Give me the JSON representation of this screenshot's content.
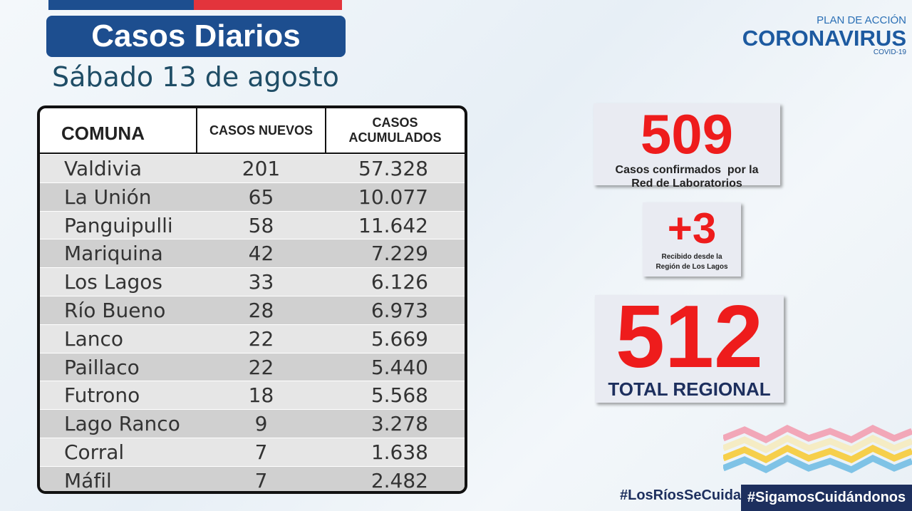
{
  "header": {
    "title": "Casos Diarios",
    "subtitle": "Sábado 13 de agosto"
  },
  "logo": {
    "line1": "PLAN DE ACCIÓN",
    "line2": "CORONAVIRUS",
    "line3": "COVID-19"
  },
  "table": {
    "columns": [
      "COMUNA",
      "CASOS NUEVOS",
      [
        "CASOS",
        "ACUMULADOS"
      ]
    ],
    "rows": [
      [
        "Valdivia",
        "201",
        "57.328"
      ],
      [
        "La Unión",
        "65",
        "10.077"
      ],
      [
        "Panguipulli",
        "58",
        "11.642"
      ],
      [
        "Mariquina",
        "42",
        "7.229"
      ],
      [
        "Los Lagos",
        "33",
        "6.126"
      ],
      [
        "Río Bueno",
        "28",
        "6.973"
      ],
      [
        "Lanco",
        "22",
        "5.669"
      ],
      [
        "Paillaco",
        "22",
        "5.440"
      ],
      [
        "Futrono",
        "18",
        "5.568"
      ],
      [
        "Lago Ranco",
        "9",
        "3.278"
      ],
      [
        "Corral",
        "7",
        "1.638"
      ],
      [
        "Máfil",
        "7",
        "2.482"
      ]
    ]
  },
  "stats": [
    {
      "value": "509",
      "caption": [
        "Casos confirmados  por la",
        "Red de Laboratorios"
      ]
    },
    {
      "value": "+3",
      "caption": [
        "Recibido desde la",
        "Región de Los Lagos"
      ]
    },
    {
      "value": "512",
      "caption": [
        "TOTAL REGIONAL"
      ]
    }
  ],
  "footer": {
    "hashtag1": "#LosRíosSeCuida",
    "hashtag2": "#SigamosCuidándonos"
  }
}
